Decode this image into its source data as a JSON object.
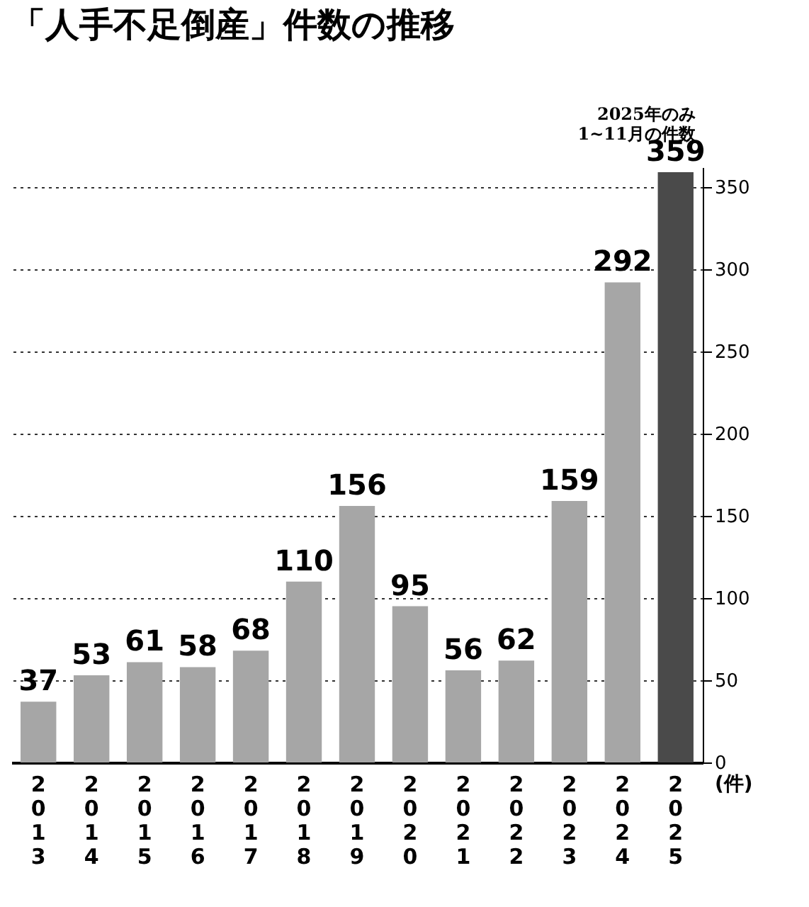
{
  "chart_data": {
    "type": "bar",
    "title": "「人手不足倒産」件数の推移",
    "ylabel": "(件)",
    "categories": [
      "2013",
      "2014",
      "2015",
      "2016",
      "2017",
      "2018",
      "2019",
      "2020",
      "2021",
      "2022",
      "2023",
      "2024",
      "2025"
    ],
    "values": [
      37,
      53,
      61,
      58,
      68,
      110,
      156,
      95,
      56,
      62,
      159,
      292,
      359
    ],
    "colors": [
      "#a6a6a6",
      "#a6a6a6",
      "#a6a6a6",
      "#a6a6a6",
      "#a6a6a6",
      "#a6a6a6",
      "#a6a6a6",
      "#a6a6a6",
      "#a6a6a6",
      "#a6a6a6",
      "#a6a6a6",
      "#a6a6a6",
      "#4a4a4a"
    ],
    "ylim": [
      0,
      362
    ],
    "yticks": [
      0,
      50,
      100,
      150,
      200,
      250,
      300,
      350
    ],
    "grid": "y",
    "data_labels": true,
    "annotations": [
      {
        "text": "2025年のみ\n1~11月の件数",
        "x": "2025",
        "y": 359
      }
    ]
  }
}
